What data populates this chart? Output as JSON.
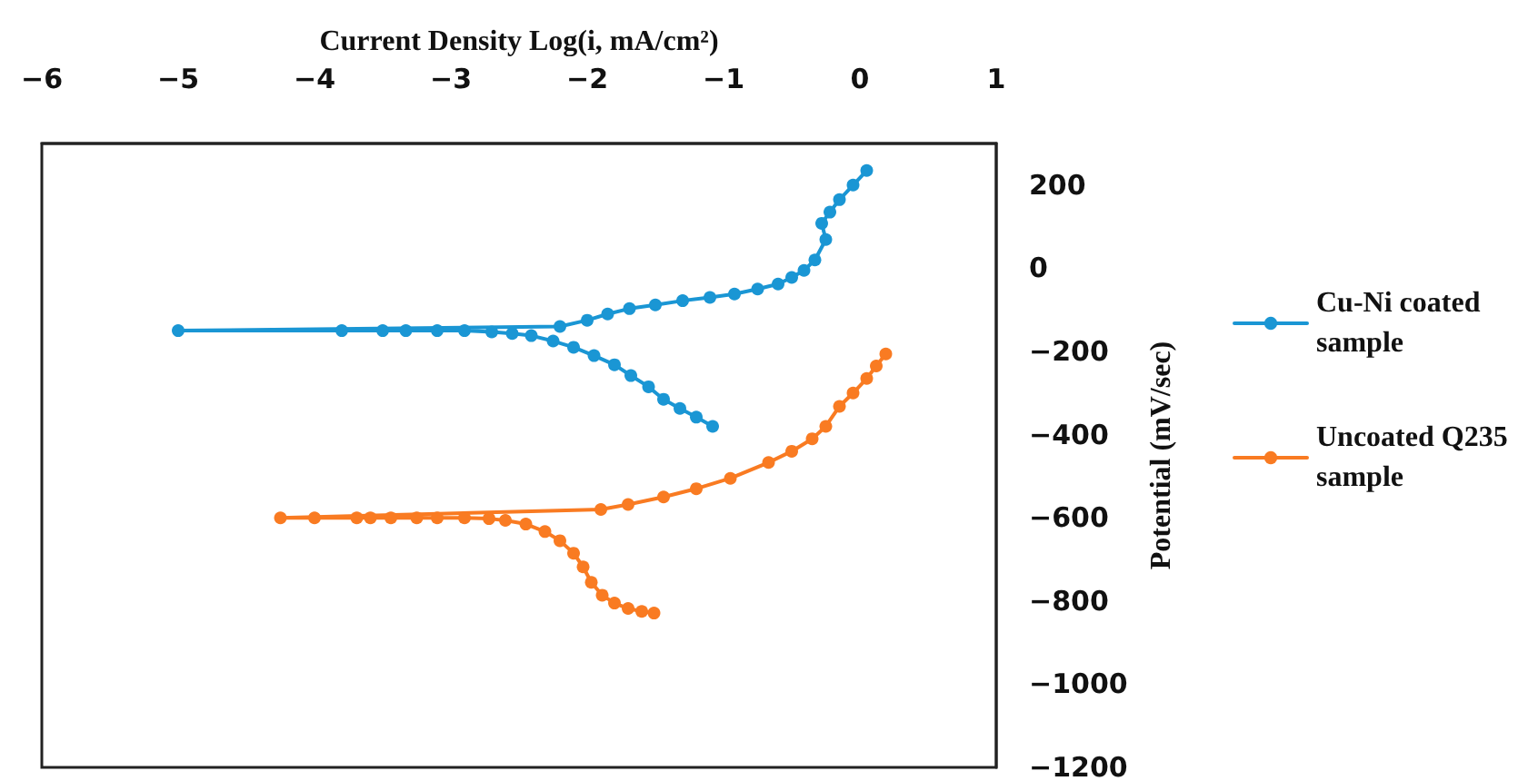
{
  "chart_data": {
    "type": "line",
    "xlabel": "Current Density Log(i, mA/cm²)",
    "ylabel": "Potential (mV/sec)",
    "xlim": [
      -6,
      1
    ],
    "xticks": [
      -6,
      -5,
      -4,
      -3,
      -2,
      -1,
      0,
      1
    ],
    "ylim": [
      -1200,
      300
    ],
    "yticks": [
      -1200,
      -1000,
      -800,
      -600,
      -400,
      -200,
      0,
      200
    ],
    "grid": false,
    "legend": "right",
    "marker": "circle",
    "line_style": "solid",
    "series": [
      {
        "name": "Cu-Ni coated sample",
        "color": "#1a96d4",
        "x": [
          -1.08,
          -1.2,
          -1.32,
          -1.44,
          -1.55,
          -1.68,
          -1.8,
          -1.95,
          -2.1,
          -2.25,
          -2.41,
          -2.55,
          -2.7,
          -2.9,
          -3.1,
          -3.33,
          -3.5,
          -3.8,
          -5.0,
          -2.2,
          -2.0,
          -1.85,
          -1.69,
          -1.5,
          -1.3,
          -1.1,
          -0.92,
          -0.75,
          -0.6,
          -0.5,
          -0.41,
          -0.33,
          -0.25,
          -0.28,
          -0.22,
          -0.15,
          -0.05,
          0.05
        ],
        "values": [
          -380,
          -358,
          -337,
          -315,
          -285,
          -258,
          -232,
          -210,
          -190,
          -175,
          -162,
          -157,
          -153,
          -150,
          -150,
          -150,
          -150,
          -150,
          -150,
          -140,
          -125,
          -110,
          -97,
          -88,
          -78,
          -70,
          -62,
          -50,
          -38,
          -22,
          -5,
          20,
          69,
          108,
          135,
          165,
          200,
          235
        ]
      },
      {
        "name": "Uncoated Q235 sample",
        "color": "#f97b22",
        "x": [
          -1.51,
          -1.6,
          -1.7,
          -1.8,
          -1.89,
          -1.97,
          -2.03,
          -2.1,
          -2.2,
          -2.31,
          -2.45,
          -2.6,
          -2.72,
          -2.9,
          -3.1,
          -3.25,
          -3.44,
          -3.59,
          -3.69,
          -4.0,
          -4.25,
          -1.9,
          -1.7,
          -1.44,
          -1.2,
          -0.95,
          -0.67,
          -0.5,
          -0.35,
          -0.25,
          -0.15,
          -0.05,
          0.05,
          0.12,
          0.19
        ],
        "values": [
          -829,
          -825,
          -818,
          -805,
          -786,
          -755,
          -718,
          -685,
          -655,
          -633,
          -615,
          -606,
          -602,
          -600,
          -600,
          -600,
          -600,
          -600,
          -600,
          -600,
          -600,
          -580,
          -568,
          -550,
          -530,
          -505,
          -467,
          -440,
          -410,
          -380,
          -332,
          -300,
          -265,
          -235,
          -206
        ]
      }
    ]
  }
}
